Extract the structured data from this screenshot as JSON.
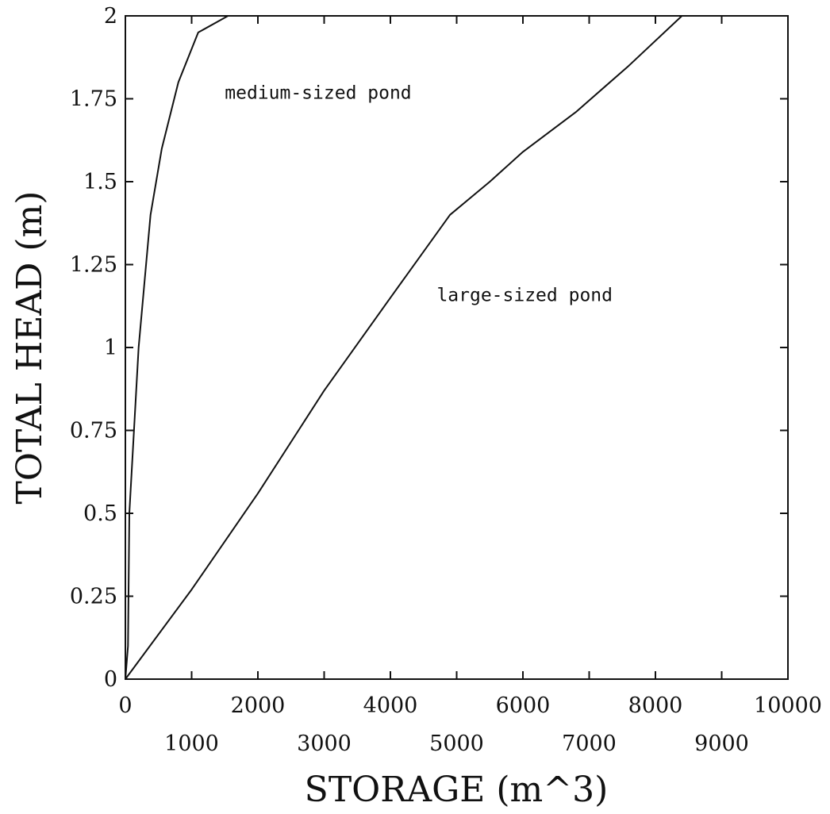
{
  "chart_data": {
    "type": "line",
    "title": "",
    "xlabel": "STORAGE (m^3)",
    "ylabel": "TOTAL HEAD (m)",
    "xlim": [
      0,
      10000
    ],
    "ylim": [
      0,
      2
    ],
    "grid": false,
    "x_ticks_major": [
      0,
      2000,
      4000,
      6000,
      8000,
      10000
    ],
    "x_ticks_minor": [
      1000,
      3000,
      5000,
      7000,
      9000
    ],
    "x_tick_labels_major": [
      "0",
      "2000",
      "4000",
      "6000",
      "8000",
      "10000"
    ],
    "x_tick_labels_minor": [
      "1000",
      "3000",
      "5000",
      "7000",
      "9000"
    ],
    "y_ticks": [
      0,
      0.25,
      0.5,
      0.75,
      1,
      1.25,
      1.5,
      1.75,
      2
    ],
    "y_tick_labels": [
      "0",
      "0.25",
      "0.5",
      "0.75",
      "1",
      "1.25",
      "1.5",
      "1.75",
      "2"
    ],
    "series": [
      {
        "x": [
          0,
          40,
          60,
          200,
          380,
          550,
          800,
          1100,
          1550
        ],
        "y": [
          0,
          0.1,
          0.5,
          1.0,
          1.4,
          1.6,
          1.8,
          1.95,
          2.0
        ]
      },
      {
        "x": [
          0,
          1000,
          2000,
          3000,
          4000,
          4900,
          5500,
          6000,
          6800,
          7600,
          8400
        ],
        "y": [
          0,
          0.27,
          0.56,
          0.87,
          1.15,
          1.4,
          1.5,
          1.59,
          1.71,
          1.85,
          2.0
        ]
      }
    ],
    "annotations": [
      {
        "text": "medium-sized pond",
        "x": 1500,
        "y": 1.75
      },
      {
        "text": "large-sized pond",
        "x": 4700,
        "y": 1.14
      }
    ]
  }
}
